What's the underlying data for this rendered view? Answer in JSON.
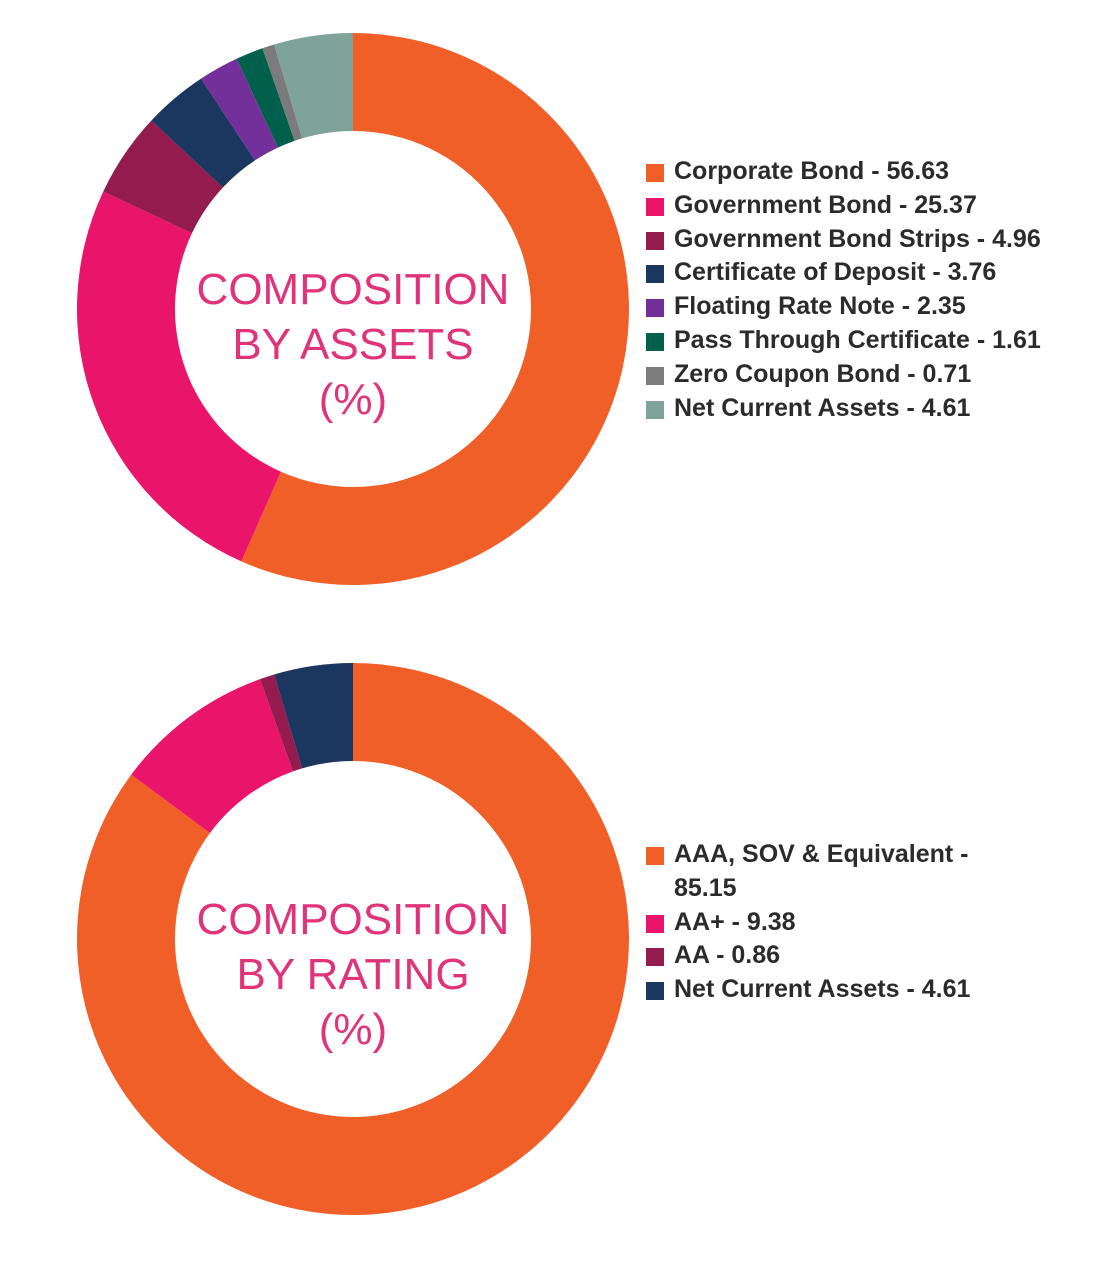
{
  "chart_data": [
    {
      "type": "pie",
      "title_lines": [
        "COMPOSITION",
        "BY ASSETS",
        "(%)"
      ],
      "categories": [
        "Corporate Bond",
        "Government Bond",
        "Government Bond Strips",
        "Certificate of Deposit",
        "Floating Rate Note",
        "Pass Through Certificate",
        "Zero Coupon Bond",
        "Net Current Assets"
      ],
      "values": [
        56.63,
        25.37,
        4.96,
        3.76,
        2.35,
        1.61,
        0.71,
        4.61
      ],
      "colors": [
        "#f05f28",
        "#e9156a",
        "#931b4d",
        "#1b365f",
        "#74309a",
        "#00604c",
        "#7b7b7b",
        "#7fa39a"
      ],
      "legend_labels": [
        "Corporate Bond - 56.63",
        "Government Bond - 25.37",
        "Government Bond Strips - 4.96",
        "Certificate of Deposit - 3.76",
        "Floating Rate Note - 2.35",
        "Pass Through Certificate - 1.61",
        "Zero Coupon Bond - 0.71",
        "Net Current Assets - 4.61"
      ],
      "legend_position": "right"
    },
    {
      "type": "pie",
      "title_lines": [
        "COMPOSITION",
        "BY RATING",
        "(%)"
      ],
      "categories": [
        "AAA, SOV & Equivalent",
        "AA+",
        "AA",
        "Net Current Assets"
      ],
      "values": [
        85.15,
        9.38,
        0.86,
        4.61
      ],
      "colors": [
        "#f05f28",
        "#e9156a",
        "#931b4d",
        "#1b365f"
      ],
      "legend_labels": [
        "AAA, SOV & Equivalent - 85.15",
        "AA+ - 9.38",
        "AA - 0.86",
        "Net Current Assets - 4.61"
      ],
      "legend_position": "right"
    }
  ]
}
